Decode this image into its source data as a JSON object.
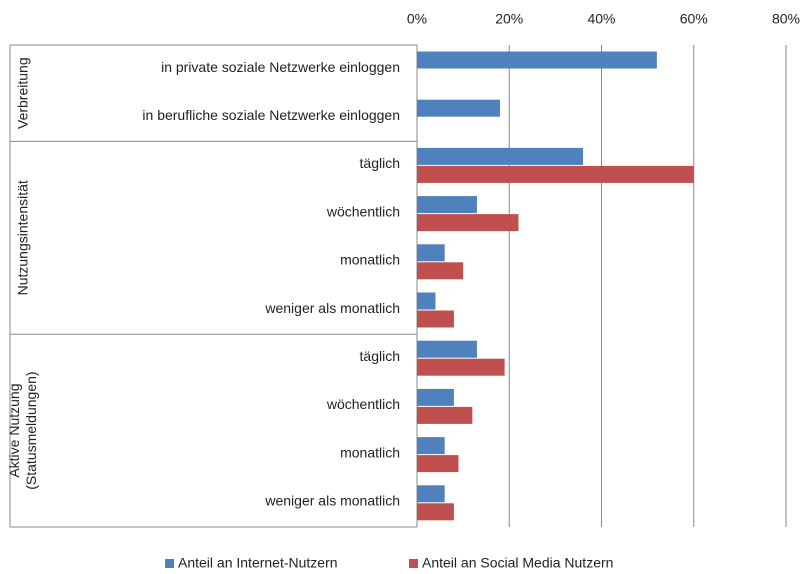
{
  "chart_data": {
    "type": "bar",
    "orientation": "horizontal",
    "groups": [
      {
        "name": [
          "Verbreitung"
        ],
        "categories": [
          "in private soziale Netzwerke einloggen",
          "in berufliche soziale Netzwerke einloggen"
        ]
      },
      {
        "name": [
          "Nutzungsintensität"
        ],
        "categories": [
          "täglich",
          "wöchentlich",
          "monatlich",
          "weniger als monatlich"
        ]
      },
      {
        "name": [
          "Aktive Nutzung",
          "(Statusmeldungen)"
        ],
        "categories": [
          "täglich",
          "wöchentlich",
          "monatlich",
          "weniger als monatlich"
        ]
      }
    ],
    "series": [
      {
        "name": "Anteil an Internet-Nutzern",
        "color": "#4f81bd",
        "values": [
          52,
          18,
          36,
          13,
          6,
          4,
          13,
          8,
          6,
          6
        ]
      },
      {
        "name": "Anteil an Social Media Nutzern",
        "color": "#c0504d",
        "values": [
          null,
          null,
          60,
          22,
          10,
          8,
          19,
          12,
          9,
          8
        ]
      }
    ],
    "xlim": [
      0,
      80
    ],
    "xticks": [
      {
        "value": 0,
        "label": "0%"
      },
      {
        "value": 20,
        "label": "20%"
      },
      {
        "value": 40,
        "label": "40%"
      },
      {
        "value": 60,
        "label": "60%"
      },
      {
        "value": 80,
        "label": "80%"
      }
    ],
    "grid": true,
    "legend": "bottom"
  }
}
